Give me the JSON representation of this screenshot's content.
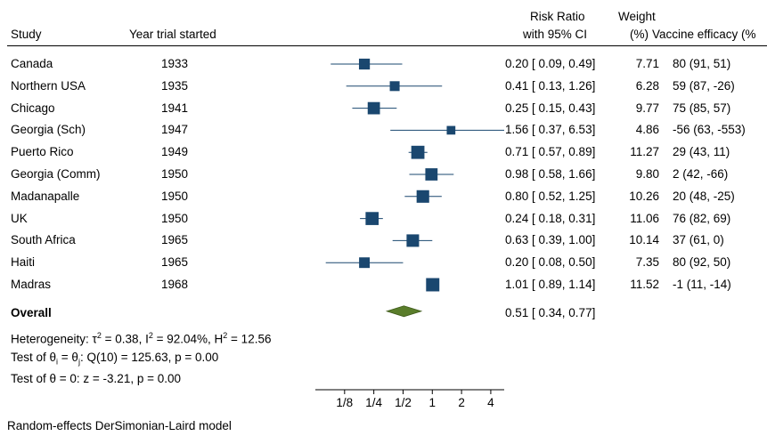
{
  "headers": {
    "study": "Study",
    "year": "Year trial started",
    "rr_line1": "Risk Ratio",
    "rr_line2": "with 95% CI",
    "weight_line1": "Weight",
    "weight_line2": "(%)",
    "efficacy": "Vaccine efficacy (%"
  },
  "overall": {
    "label": "Overall",
    "ci_text": "0.51 [ 0.34, 0.77]"
  },
  "heterogeneity": {
    "prefix": "Heterogeneity: τ",
    "tau_sq": "2",
    "tau_val": " = 0.38, I",
    "i_sq": "2",
    "i_val": " = 92.04%, H",
    "h_sq": "2",
    "h_val": " = 12.56"
  },
  "test_homog": {
    "prefix": "Test of θ",
    "sub_i": "i",
    "mid": " = θ",
    "sub_j": "j",
    "rest": ": Q(10) = 125.63, p = 0.00"
  },
  "test_theta": "Test of θ = 0: z = -3.21, p = 0.00",
  "footnote": "Random-effects DerSimonian-Laird model",
  "colors": {
    "marker": "#1a476f",
    "diamond": "#5a7d2b",
    "diamond_stroke": "#3e5a1a"
  },
  "chart_data": {
    "type": "forest",
    "xscale": "log2",
    "xlim": [
      0.0625,
      5.5
    ],
    "ticks": [
      {
        "v": 0.125,
        "label": "1/8"
      },
      {
        "v": 0.25,
        "label": "1/4"
      },
      {
        "v": 0.5,
        "label": "1/2"
      },
      {
        "v": 1,
        "label": "1"
      },
      {
        "v": 2,
        "label": "2"
      },
      {
        "v": 4,
        "label": "4"
      }
    ],
    "studies": [
      {
        "study": "Canada",
        "year": "1933",
        "rr": 0.2,
        "lo": 0.09,
        "hi": 0.49,
        "ci_text": "0.20 [ 0.09, 0.49]",
        "weight": 7.71,
        "weight_text": "7.71",
        "efficacy": "80 (91, 51)"
      },
      {
        "study": "Northern USA",
        "year": "1935",
        "rr": 0.41,
        "lo": 0.13,
        "hi": 1.26,
        "ci_text": "0.41 [ 0.13, 1.26]",
        "weight": 6.28,
        "weight_text": "6.28",
        "efficacy": "59 (87, -26)"
      },
      {
        "study": "Chicago",
        "year": "1941",
        "rr": 0.25,
        "lo": 0.15,
        "hi": 0.43,
        "ci_text": "0.25 [ 0.15, 0.43]",
        "weight": 9.77,
        "weight_text": "9.77",
        "efficacy": "75 (85, 57)"
      },
      {
        "study": "Georgia (Sch)",
        "year": "1947",
        "rr": 1.56,
        "lo": 0.37,
        "hi": 6.53,
        "ci_text": "1.56 [ 0.37, 6.53]",
        "weight": 4.86,
        "weight_text": "4.86",
        "efficacy": "-56 (63, -553)"
      },
      {
        "study": "Puerto Rico",
        "year": "1949",
        "rr": 0.71,
        "lo": 0.57,
        "hi": 0.89,
        "ci_text": "0.71 [ 0.57, 0.89]",
        "weight": 11.27,
        "weight_text": "11.27",
        "efficacy": "29 (43, 11)"
      },
      {
        "study": "Georgia (Comm)",
        "year": "1950",
        "rr": 0.98,
        "lo": 0.58,
        "hi": 1.66,
        "ci_text": "0.98 [ 0.58, 1.66]",
        "weight": 9.8,
        "weight_text": "9.80",
        "efficacy": "2 (42, -66)"
      },
      {
        "study": "Madanapalle",
        "year": "1950",
        "rr": 0.8,
        "lo": 0.52,
        "hi": 1.25,
        "ci_text": "0.80 [ 0.52, 1.25]",
        "weight": 10.26,
        "weight_text": "10.26",
        "efficacy": "20 (48, -25)"
      },
      {
        "study": "UK",
        "year": "1950",
        "rr": 0.24,
        "lo": 0.18,
        "hi": 0.31,
        "ci_text": "0.24 [ 0.18, 0.31]",
        "weight": 11.06,
        "weight_text": "11.06",
        "efficacy": "76 (82, 69)"
      },
      {
        "study": "South Africa",
        "year": "1965",
        "rr": 0.63,
        "lo": 0.39,
        "hi": 1.0,
        "ci_text": "0.63 [ 0.39, 1.00]",
        "weight": 10.14,
        "weight_text": "10.14",
        "efficacy": "37 (61, 0)"
      },
      {
        "study": "Haiti",
        "year": "1965",
        "rr": 0.2,
        "lo": 0.08,
        "hi": 0.5,
        "ci_text": "0.20 [ 0.08, 0.50]",
        "weight": 7.35,
        "weight_text": "7.35",
        "efficacy": "80 (92, 50)"
      },
      {
        "study": "Madras",
        "year": "1968",
        "rr": 1.01,
        "lo": 0.89,
        "hi": 1.14,
        "ci_text": "1.01 [ 0.89, 1.14]",
        "weight": 11.52,
        "weight_text": "11.52",
        "efficacy": "-1 (11, -14)"
      }
    ],
    "overall": {
      "rr": 0.51,
      "lo": 0.34,
      "hi": 0.77
    }
  }
}
